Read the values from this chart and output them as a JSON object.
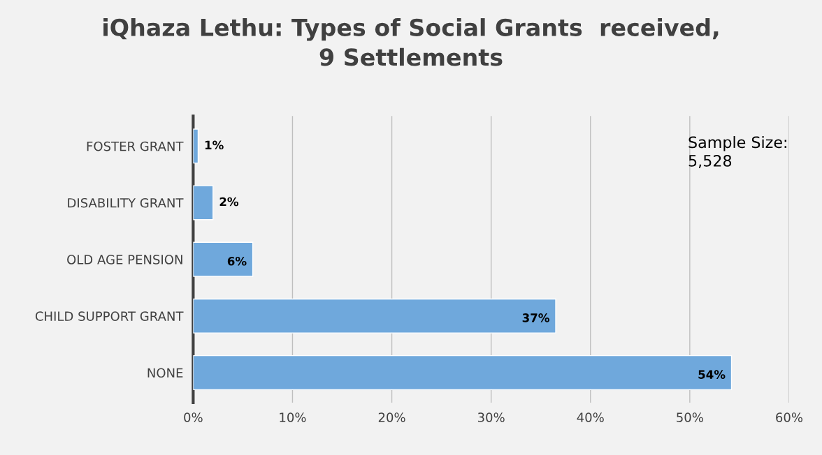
{
  "chart_data": {
    "type": "bar",
    "orientation": "horizontal",
    "title": "iQhaza Lethu: Types of Social Grants  received,\n9 Settlements",
    "categories": [
      "FOSTER GRANT",
      "DISABILITY GRANT",
      "OLD AGE PENSION",
      "CHILD SUPPORT GRANT",
      "NONE"
    ],
    "values": [
      0.5,
      2,
      6,
      36.5,
      54.2
    ],
    "value_labels": [
      "1%",
      "2%",
      "6%",
      "37%",
      "54%"
    ],
    "color": "#6fa8dc",
    "xlim": [
      0,
      60
    ],
    "xticks": [
      {
        "value": 0,
        "label": "0%"
      },
      {
        "value": 10,
        "label": "10%"
      },
      {
        "value": 20,
        "label": "20%"
      },
      {
        "value": 30,
        "label": "30%"
      },
      {
        "value": 40,
        "label": "40%"
      },
      {
        "value": 50,
        "label": "50%"
      },
      {
        "value": 60,
        "label": "60%"
      }
    ],
    "grid": "x",
    "legend": false,
    "annotations": [
      "Sample Size:\n5,528"
    ]
  }
}
